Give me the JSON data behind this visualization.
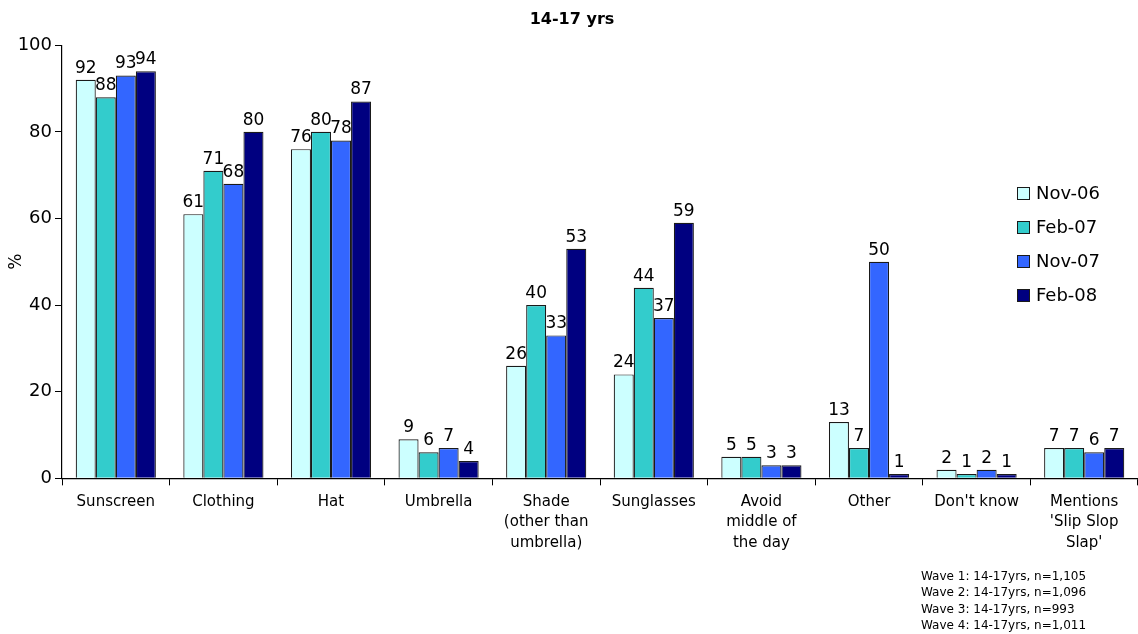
{
  "chart_data": {
    "type": "bar",
    "title": "14-17 yrs",
    "ylabel": "%",
    "categories": [
      "Sunscreen",
      "Clothing",
      "Hat",
      "Umbrella",
      "Shade (other than umbrella)",
      "Sunglasses",
      "Avoid middle of the day",
      "Other",
      "Don't know",
      "Mentions 'Slip Slop Slap'"
    ],
    "series": [
      {
        "name": "Nov-06",
        "color": "#ccffff",
        "values": [
          92,
          61,
          76,
          9,
          26,
          24,
          5,
          13,
          2,
          7
        ]
      },
      {
        "name": "Feb-07",
        "color": "#33cccc",
        "values": [
          88,
          71,
          80,
          6,
          40,
          44,
          5,
          7,
          1,
          7
        ]
      },
      {
        "name": "Nov-07",
        "color": "#3366ff",
        "values": [
          93,
          68,
          78,
          7,
          33,
          37,
          3,
          50,
          2,
          6
        ]
      },
      {
        "name": "Feb-08",
        "color": "#000080",
        "values": [
          94,
          80,
          87,
          4,
          53,
          59,
          3,
          1,
          1,
          7
        ]
      }
    ],
    "ylim": [
      0,
      100
    ],
    "yticks": [
      0,
      20,
      40,
      60,
      80,
      100
    ],
    "data_labels": true,
    "legend": "right",
    "annotations": [
      "Wave 1: 14-17yrs, n=1,105",
      "Wave 2: 14-17yrs, n=1,096",
      "Wave 3: 14-17yrs, n=993",
      "Wave 4: 14-17yrs, n=1,011"
    ]
  }
}
